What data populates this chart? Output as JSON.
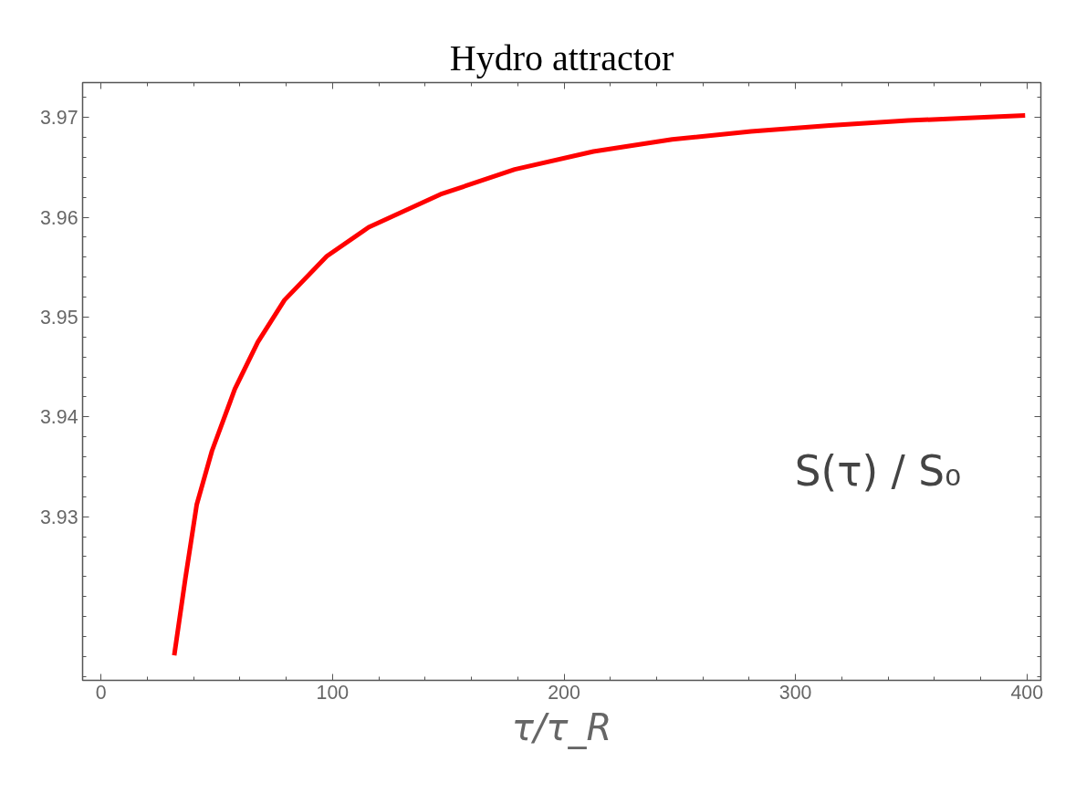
{
  "chart_data": {
    "type": "line",
    "title": "Hydro attractor",
    "xlabel": "τ/τ_R",
    "x": [
      31.6,
      36.4,
      41.3,
      47.9,
      57.8,
      67.7,
      79.2,
      97.5,
      115.6,
      146.6,
      178.7,
      212.7,
      246.7,
      280.8,
      314.7,
      348.6,
      399.2
    ],
    "series": [
      {
        "color": "#ff0000",
        "values": [
          3.9161,
          3.9238,
          3.9312,
          3.9366,
          3.9428,
          3.9475,
          3.9517,
          3.9561,
          3.959,
          3.9623,
          3.9648,
          3.9666,
          3.9678,
          3.9686,
          3.9692,
          3.9697,
          3.9702
        ]
      }
    ],
    "xlim": [
      -8,
      406
    ],
    "ylim": [
      3.9136,
      3.9735
    ],
    "xticks": [
      0,
      100,
      200,
      300,
      400
    ],
    "yticks": [
      3.93,
      3.94,
      3.95,
      3.96,
      3.97
    ],
    "annotations": [
      "S(τ) / S₀"
    ],
    "grid": false,
    "marker": "none",
    "line_style": "solid"
  }
}
